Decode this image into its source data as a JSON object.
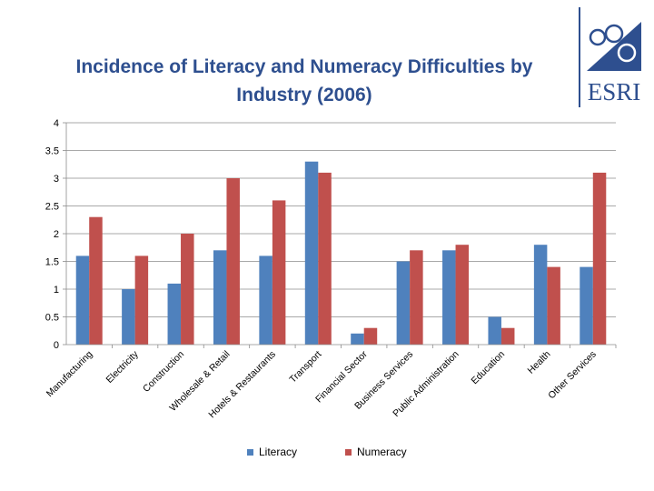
{
  "title_lines": [
    "Incidence of Literacy and Numeracy Difficulties by",
    "Industry (2006)"
  ],
  "logo": {
    "text": "ESRI",
    "color": "#2e4f8f"
  },
  "chart_data": {
    "type": "bar",
    "title": "Incidence of Literacy and Numeracy Difficulties by Industry (2006)",
    "categories": [
      "Manufacturing",
      "Electricity",
      "Construction",
      "Wholesale & Retail",
      "Hotels & Restaurants",
      "Transport",
      "Financial Sector",
      "Business Services",
      "Public Administration",
      "Education",
      "Health",
      "Other Services"
    ],
    "series": [
      {
        "name": "Literacy",
        "color": "#4f81bd",
        "values": [
          1.6,
          1.0,
          1.1,
          1.7,
          1.6,
          3.3,
          0.2,
          1.5,
          1.7,
          0.5,
          1.8,
          1.4
        ]
      },
      {
        "name": "Numeracy",
        "color": "#c0504d",
        "values": [
          2.3,
          1.6,
          2.0,
          3.0,
          2.6,
          3.1,
          0.3,
          1.7,
          1.8,
          0.3,
          1.4,
          3.1
        ]
      }
    ],
    "ylim": [
      0,
      4
    ],
    "yticks": [
      "0",
      "0.5",
      "1",
      "1.5",
      "2",
      "2.5",
      "3",
      "3.5",
      "4"
    ],
    "grid": true,
    "legend": "bottom"
  }
}
